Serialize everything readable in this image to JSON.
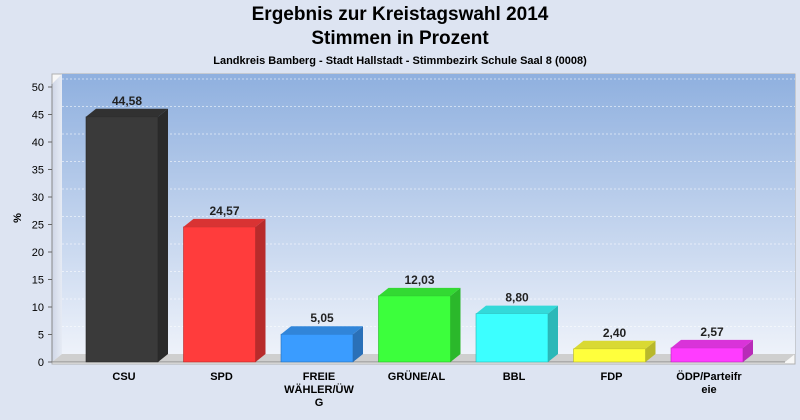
{
  "header": {
    "title_line1": "Ergebnis zur Kreistagswahl 2014",
    "title_line2": "Stimmen in Prozent",
    "subtitle": "Landkreis Bamberg - Stadt Hallstadt - Stimmbezirk Schule Saal 8 (0008)"
  },
  "chart_data": {
    "type": "bar",
    "title": "Ergebnis zur Kreistagswahl 2014 Stimmen in Prozent",
    "subtitle": "Landkreis Bamberg - Stadt Hallstadt - Stimmbezirk Schule Saal 8 (0008)",
    "xlabel": "",
    "ylabel": "%",
    "ylim": [
      0,
      50
    ],
    "yticks": [
      0,
      5,
      10,
      15,
      20,
      25,
      30,
      35,
      40,
      45,
      50
    ],
    "grid": true,
    "legend": "none",
    "categories": [
      "CSU",
      "SPD",
      "FREIE WÄHLER/ÜWG",
      "GRÜNE/AL",
      "BBL",
      "FDP",
      "ÖDP/Parteifreie"
    ],
    "category_label_lines": [
      [
        "CSU"
      ],
      [
        "SPD"
      ],
      [
        "FREIE",
        "WÄHLER/ÜW",
        "G"
      ],
      [
        "GRÜNE/AL"
      ],
      [
        "BBL"
      ],
      [
        "FDP"
      ],
      [
        "ÖDP/Parteifr",
        "eie"
      ]
    ],
    "values": [
      44.58,
      24.57,
      5.05,
      12.03,
      8.8,
      2.4,
      2.57
    ],
    "value_labels": [
      "44,58",
      "24,57",
      "5,05",
      "12,03",
      "8,80",
      "2,40",
      "2,57"
    ],
    "colors": [
      "#3a3a3a",
      "#ff3c3c",
      "#3a9cff",
      "#3cff3c",
      "#3cffff",
      "#ffff3c",
      "#ff3cff"
    ]
  }
}
